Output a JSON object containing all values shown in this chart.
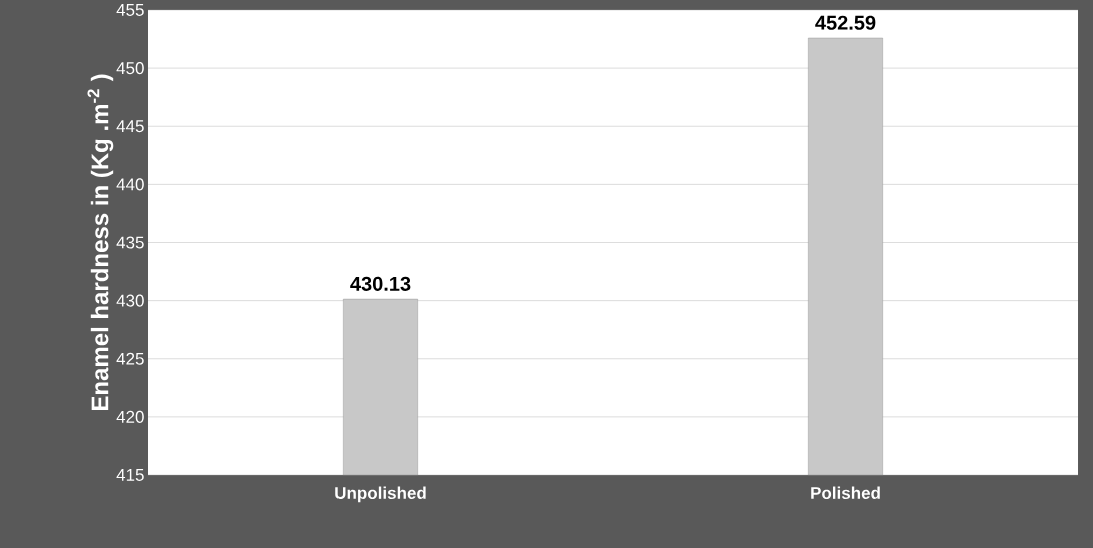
{
  "chart_data": {
    "type": "bar",
    "ylabel": "Enamel hardness in (Kg .m$^{-2}$ )",
    "categories": [
      "Unpolished",
      "Polished"
    ],
    "values": [
      430.13,
      452.59
    ],
    "color": "#c8c8c8",
    "ylim": [
      415,
      455
    ],
    "yticks": [
      415,
      420,
      425,
      430,
      435,
      440,
      445,
      450,
      455
    ],
    "grid": "y",
    "data_labels": true
  }
}
